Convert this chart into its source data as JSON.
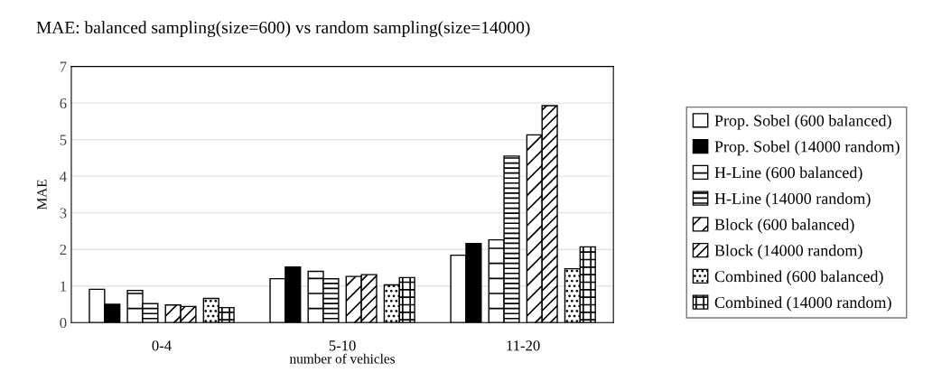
{
  "chart_data": {
    "type": "bar",
    "title": "MAE: balanced sampling(size=600) vs random sampling(size=14000)",
    "xlabel": "number of vehicles",
    "ylabel": "MAE",
    "categories": [
      "0-4",
      "5-10",
      "11-20"
    ],
    "series": [
      {
        "name": "Prop. Sobel (600 balanced)",
        "color": "#ffffff",
        "values": [
          0.91,
          1.2,
          1.84
        ]
      },
      {
        "name": "Prop. Sobel (14000 random)",
        "color": "#000000",
        "values": [
          0.5,
          1.52,
          2.16
        ]
      },
      {
        "name": "H-Line (600 balanced)",
        "color": "#000000",
        "values": [
          0.88,
          1.4,
          2.26
        ]
      },
      {
        "name": "H-Line (14000 random)",
        "color": "#000000",
        "values": [
          0.52,
          1.2,
          4.55
        ]
      },
      {
        "name": "Block (600 balanced)",
        "color": "#000000",
        "values": [
          0.48,
          1.26,
          5.13
        ]
      },
      {
        "name": "Block (14000 random)",
        "color": "#000000",
        "values": [
          0.44,
          1.31,
          5.93
        ]
      },
      {
        "name": "Combined (600 balanced)",
        "color": "#000000",
        "values": [
          0.66,
          1.03,
          1.47
        ]
      },
      {
        "name": "Combined (14000 random)",
        "color": "#000000",
        "values": [
          0.41,
          1.23,
          2.07
        ]
      }
    ],
    "ylim": [
      0,
      7
    ],
    "yticks": [
      0,
      1,
      2,
      3,
      4,
      5,
      6,
      7
    ],
    "grid": "y",
    "legend": "right"
  }
}
